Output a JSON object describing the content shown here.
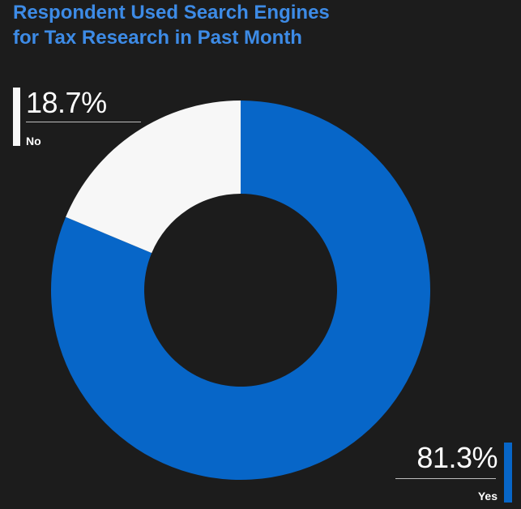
{
  "chart_data": {
    "type": "pie",
    "donut": true,
    "title": [
      "Respondent Used Search Engines",
      "for Tax Research in Past Month"
    ],
    "categories": [
      "Yes",
      "No"
    ],
    "values": [
      81.3,
      18.7
    ],
    "value_labels": [
      "81.3%",
      "18.7%"
    ],
    "colors": [
      "#0766c8",
      "#f7f7f7"
    ],
    "legend": "none"
  },
  "style": {
    "background": "#1c1c1c",
    "title_color": "#3d8be6"
  }
}
